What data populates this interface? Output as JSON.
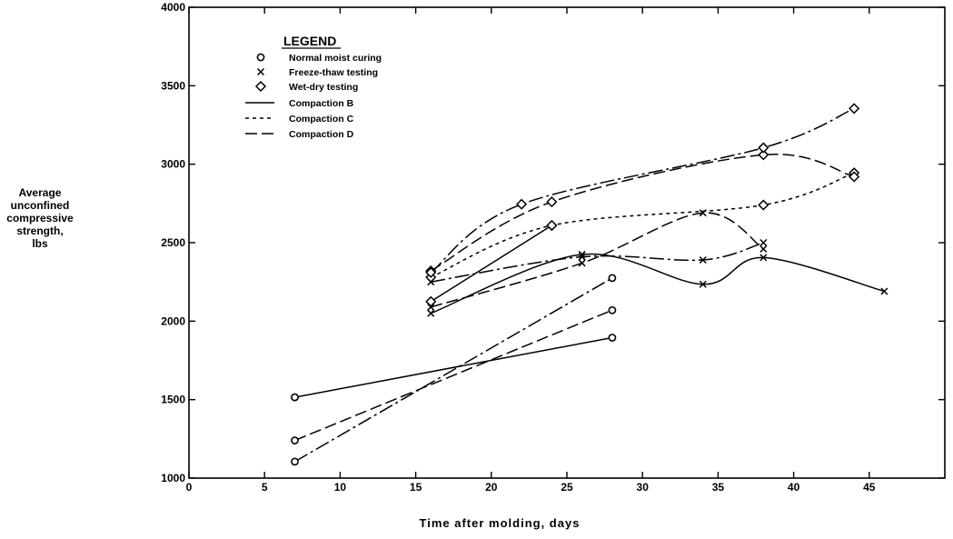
{
  "chart_data": {
    "type": "line",
    "xlabel": "Time after molding, days",
    "ylabel_lines": [
      "Average",
      "unconfined",
      "compressive",
      "strength,",
      "lbs"
    ],
    "xlim": [
      0,
      50
    ],
    "ylim": [
      1000,
      4000
    ],
    "x_ticks": [
      0,
      5,
      10,
      15,
      20,
      25,
      30,
      35,
      40,
      45
    ],
    "y_ticks": [
      1000,
      1500,
      2000,
      2500,
      3000,
      3500,
      4000
    ],
    "grid": false,
    "legend": {
      "title": "LEGEND",
      "placement": "top-left",
      "markers": [
        {
          "symbol": "circle",
          "label": "Normal moist curing"
        },
        {
          "symbol": "x",
          "label": "Freeze-thaw testing"
        },
        {
          "symbol": "diamond",
          "label": "Wet-dry testing"
        }
      ],
      "lines": [
        {
          "style": "solid",
          "label": "Compaction B"
        },
        {
          "style": "short-dash",
          "label": "Compaction C"
        },
        {
          "style": "long-dash",
          "label": "Compaction D"
        }
      ]
    },
    "series": [
      {
        "marker": "circle",
        "line": "solid",
        "points": [
          [
            7,
            1515
          ],
          [
            28,
            1895
          ]
        ]
      },
      {
        "marker": "circle",
        "line": "long-dash",
        "points": [
          [
            7,
            1240
          ],
          [
            28,
            2070
          ]
        ]
      },
      {
        "marker": "circle",
        "line": "dash-dot",
        "points": [
          [
            7,
            1105
          ],
          [
            28,
            2275
          ]
        ]
      },
      {
        "marker": "x",
        "line": "solid",
        "points": [
          [
            16,
            2050
          ],
          [
            26,
            2425
          ],
          [
            34,
            2235
          ],
          [
            38,
            2405
          ],
          [
            46,
            2190
          ]
        ]
      },
      {
        "marker": "x",
        "line": "long-dash",
        "points": [
          [
            16,
            2090
          ],
          [
            26,
            2370
          ],
          [
            34,
            2690
          ],
          [
            38,
            2460
          ]
        ]
      },
      {
        "marker": "x",
        "line": "dash-dot",
        "points": [
          [
            16,
            2250
          ],
          [
            26,
            2410
          ],
          [
            34,
            2390
          ],
          [
            38,
            2500
          ]
        ]
      },
      {
        "marker": "diamond",
        "line": "solid",
        "points": [
          [
            16,
            2125
          ],
          [
            24,
            2610
          ]
        ]
      },
      {
        "marker": "diamond",
        "line": "short-dash",
        "points": [
          [
            16,
            2280
          ],
          [
            24,
            2610
          ],
          [
            38,
            2740
          ],
          [
            44,
            2945
          ]
        ]
      },
      {
        "marker": "diamond",
        "line": "long-dash",
        "points": [
          [
            16,
            2320
          ],
          [
            24,
            2760
          ],
          [
            38,
            3060
          ],
          [
            44,
            2920
          ]
        ]
      },
      {
        "marker": "diamond",
        "line": "dash-dot",
        "points": [
          [
            16,
            2310
          ],
          [
            22,
            2745
          ],
          [
            38,
            3105
          ],
          [
            44,
            3355
          ]
        ]
      }
    ]
  }
}
